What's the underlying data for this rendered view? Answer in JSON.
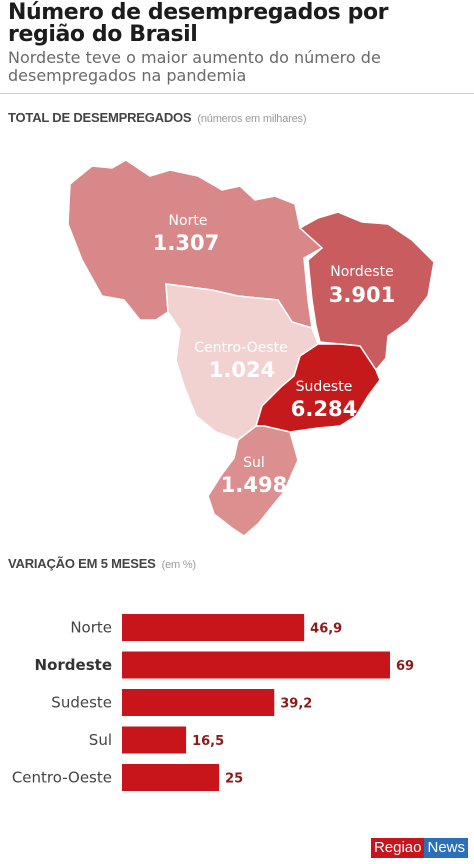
{
  "title": "Número de desempregados por região do Brasil",
  "subtitle": "Nordeste teve o maior aumento do número de desempregados na pandemia",
  "map_section": {
    "heading": "TOTAL DE DESEMPREGADOS",
    "note": "(números em milhares)"
  },
  "bar_section": {
    "heading": "VARIAÇÃO EM 5 MESES",
    "note": "(em %)"
  },
  "map_regions": [
    {
      "name": "Norte",
      "value": "1.307",
      "color": "#d9888a"
    },
    {
      "name": "Nordeste",
      "value": "3.901",
      "color": "#c85c5e"
    },
    {
      "name": "Centro-Oeste",
      "value": "1.024",
      "color": "#f2d2d0"
    },
    {
      "name": "Sudeste",
      "value": "6.284",
      "color": "#c41a1c"
    },
    {
      "name": "Sul",
      "value": "1.498",
      "color": "#dc8f8f"
    }
  ],
  "chart_data": {
    "type": "bar",
    "orientation": "horizontal",
    "categories": [
      "Norte",
      "Nordeste",
      "Sudeste",
      "Sul",
      "Centro-Oeste"
    ],
    "values": [
      46.9,
      69,
      39.2,
      16.5,
      25
    ],
    "value_labels": [
      "46,9",
      "69",
      "39,2",
      "16,5",
      "25"
    ],
    "highlight": "Nordeste",
    "bar_color": "#c8151b",
    "xlim": [
      0,
      80
    ]
  },
  "brand": {
    "part1": "Regiao",
    "part2": "News"
  }
}
